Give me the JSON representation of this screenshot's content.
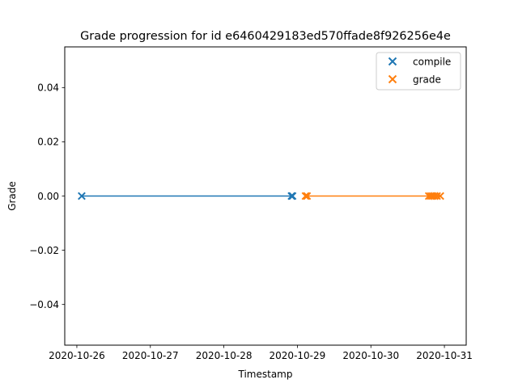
{
  "chart_data": {
    "type": "scatter",
    "title": "Grade progression for id e6460429183ed570ffade8f926256e4e",
    "xlabel": "Timestamp",
    "ylabel": "Grade",
    "xlim": [
      "2020-10-25T20:03",
      "2020-10-31T07:07"
    ],
    "ylim": [
      -0.055,
      0.055
    ],
    "grid": false,
    "legend_position": "top-right",
    "x_ticks": [
      "2020-10-26",
      "2020-10-27",
      "2020-10-28",
      "2020-10-29",
      "2020-10-30",
      "2020-10-31"
    ],
    "y_ticks": [
      0.04,
      0.02,
      0.0,
      -0.02,
      -0.04
    ],
    "y_tick_labels": [
      "0.04",
      "0.02",
      "0.00",
      "−0.02",
      "−0.04"
    ],
    "series": [
      {
        "name": "compile",
        "color": "#1f77b4",
        "marker": "x",
        "line": true,
        "points": [
          {
            "x": "2020-10-26T01:35",
            "y": 0
          },
          {
            "x": "2020-10-28T22:05",
            "y": 0
          },
          {
            "x": "2020-10-28T22:25",
            "y": 0
          }
        ]
      },
      {
        "name": "grade",
        "color": "#ff7f0e",
        "marker": "x",
        "line": true,
        "points": [
          {
            "x": "2020-10-29T02:40",
            "y": 0
          },
          {
            "x": "2020-10-29T03:10",
            "y": 0
          },
          {
            "x": "2020-10-30T18:55",
            "y": 0
          },
          {
            "x": "2020-10-30T19:35",
            "y": 0
          },
          {
            "x": "2020-10-30T20:10",
            "y": 0
          },
          {
            "x": "2020-10-30T20:50",
            "y": 0
          },
          {
            "x": "2020-10-30T21:35",
            "y": 0
          },
          {
            "x": "2020-10-30T22:40",
            "y": 0
          }
        ]
      }
    ]
  }
}
